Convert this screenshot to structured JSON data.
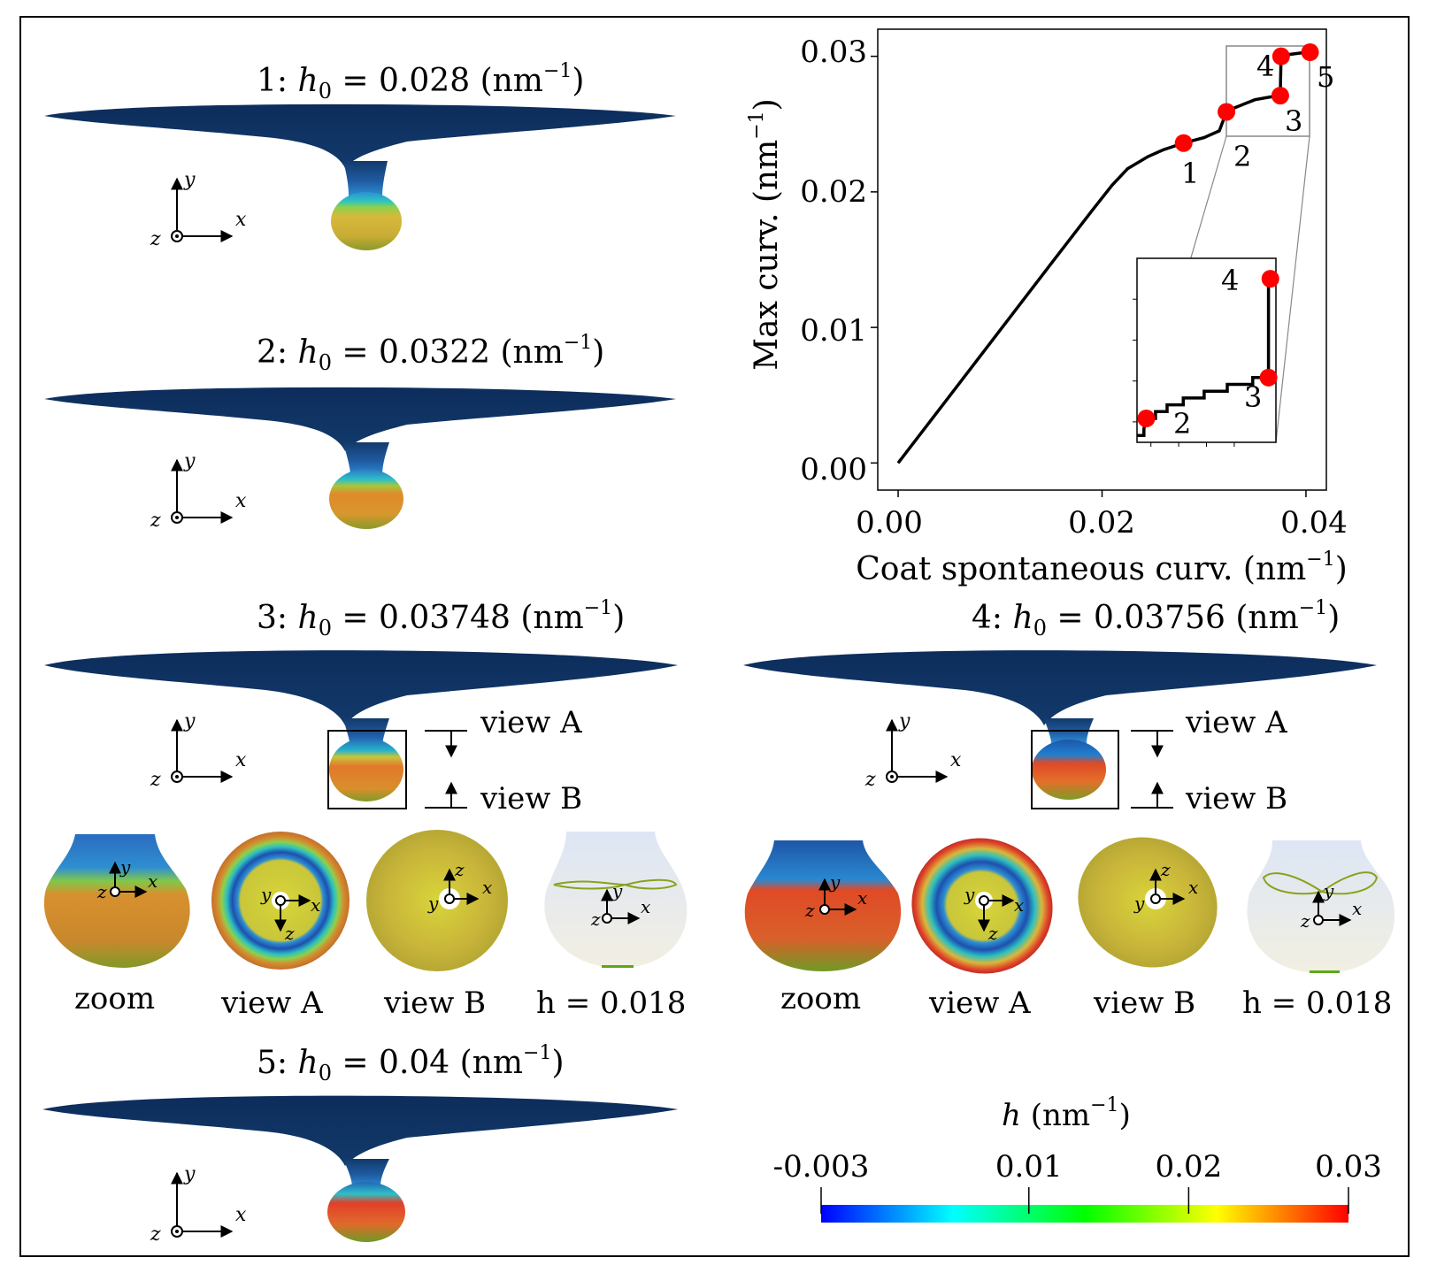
{
  "panels": [
    {
      "prefix": "1:",
      "h0": "0.028",
      "unit": "(nm",
      "sup": "−1",
      "close": ")"
    },
    {
      "prefix": "2:",
      "h0": "0.0322",
      "unit": "(nm",
      "sup": "−1",
      "close": ")"
    },
    {
      "prefix": "3:",
      "h0": "0.03748",
      "unit": "(nm",
      "sup": "−1",
      "close": ")"
    },
    {
      "prefix": "4:",
      "h0": "0.03756",
      "unit": "(nm",
      "sup": "−1",
      "close": ")"
    },
    {
      "prefix": "5:",
      "h0": "0.04",
      "unit": "(nm",
      "sup": "−1",
      "close": ")"
    }
  ],
  "symbols": {
    "h": "h",
    "zero": "0",
    "eq": "=",
    "x": "x",
    "y": "y",
    "z": "z"
  },
  "views": {
    "view_a": "view A",
    "view_b": "view B"
  },
  "subcaptions": [
    "zoom",
    "view A",
    "view B",
    "h = 0.018"
  ],
  "colorbar": {
    "title": "h",
    "title_unit": "(nm",
    "title_sup": "−1",
    "title_close": ")",
    "ticks": [
      "-0.003",
      "0.01",
      "0.02",
      "0.03"
    ],
    "min": -0.003,
    "max": 0.03,
    "colors": [
      "#0000ff",
      "#00ffff",
      "#00ff00",
      "#ffff00",
      "#ff0000"
    ]
  },
  "chart_data": {
    "type": "line",
    "xlabel": "Coat spontaneous curv.",
    "xlabel_unit": "(nm",
    "xlabel_sup": "−1",
    "xlabel_close": ")",
    "ylabel": "Max curv. (nm",
    "ylabel_sup": "−1",
    "ylabel_close": ")",
    "xlim": [
      -0.002,
      0.042
    ],
    "ylim": [
      -0.002,
      0.032
    ],
    "xticks": [
      "0.00",
      "0.02",
      "0.04"
    ],
    "yticks": [
      "0.00",
      "0.01",
      "0.02",
      "0.03"
    ],
    "series": [
      {
        "name": "max curvature",
        "x": [
          0.0,
          0.005,
          0.01,
          0.015,
          0.019,
          0.021,
          0.0225,
          0.0245,
          0.026,
          0.028,
          0.03,
          0.0315,
          0.0322,
          0.033,
          0.034,
          0.035,
          0.0365,
          0.03748,
          0.03756,
          0.038,
          0.039,
          0.04
        ],
        "y": [
          0.0,
          0.0049,
          0.0098,
          0.0147,
          0.0186,
          0.0205,
          0.0217,
          0.0226,
          0.0231,
          0.0236,
          0.024,
          0.0245,
          0.0259,
          0.0262,
          0.0265,
          0.0268,
          0.027,
          0.0271,
          0.03,
          0.0301,
          0.0302,
          0.0303
        ]
      }
    ],
    "highlighted_points": [
      {
        "label": "1",
        "x": 0.028,
        "y": 0.0236
      },
      {
        "label": "2",
        "x": 0.0322,
        "y": 0.0259
      },
      {
        "label": "3",
        "x": 0.03748,
        "y": 0.0271
      },
      {
        "label": "4",
        "x": 0.03756,
        "y": 0.03
      },
      {
        "label": "5",
        "x": 0.0404,
        "y": 0.0303
      }
    ],
    "inset": {
      "xlim": [
        0.0318,
        0.0378
      ],
      "ylim": [
        0.0252,
        0.0306
      ]
    }
  }
}
